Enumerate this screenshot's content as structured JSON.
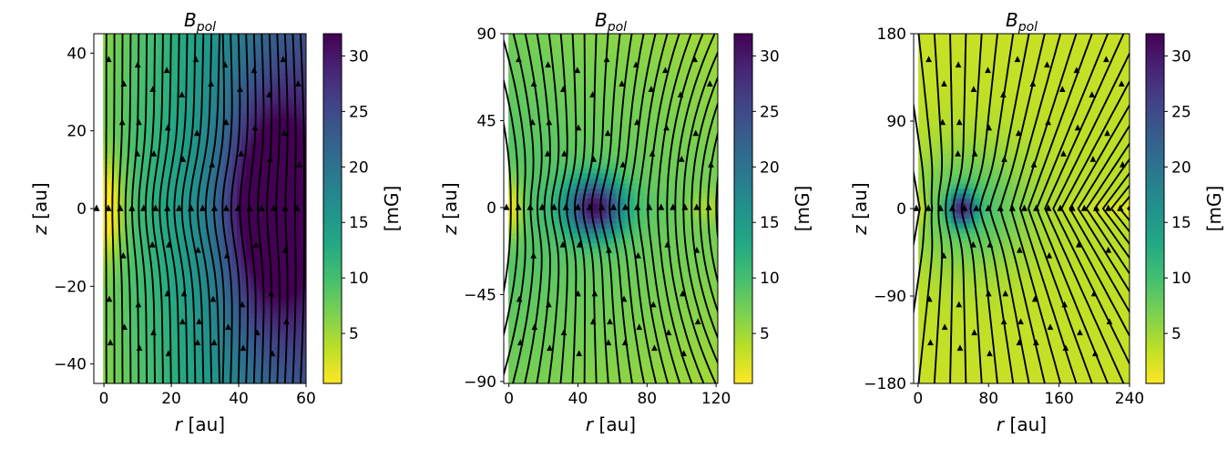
{
  "panels": [
    {
      "title_base": "B",
      "title_sub": "pol",
      "xlabel_var": "r",
      "xlabel_unit": " [au]",
      "ylabel_var": "z",
      "ylabel_unit": " [au]",
      "xlim": [
        -3,
        60
      ],
      "ylim": [
        -45,
        45
      ],
      "xticks": [
        0,
        20,
        40,
        60
      ],
      "yticks": [
        -40,
        -20,
        0,
        20,
        40
      ],
      "colorbar_label": "[mG]",
      "colorbar_ticks": [
        5,
        10,
        15,
        20,
        25,
        30
      ],
      "colorbar_range": [
        0.5,
        32
      ],
      "field_peak_r": 50,
      "field_style": "compact"
    },
    {
      "title_base": "B",
      "title_sub": "pol",
      "xlabel_var": "r",
      "xlabel_unit": " [au]",
      "ylabel_var": "z",
      "ylabel_unit": " [au]",
      "xlim": [
        -3,
        121
      ],
      "ylim": [
        -91,
        90
      ],
      "xticks": [
        0,
        40,
        80,
        120
      ],
      "yticks": [
        -90,
        -45,
        0,
        45,
        90
      ],
      "colorbar_label": "[mG]",
      "colorbar_ticks": [
        5,
        10,
        15,
        20,
        25,
        30
      ],
      "colorbar_range": [
        0.5,
        32
      ],
      "field_peak_r": 50,
      "field_style": "medium"
    },
    {
      "title_base": "B",
      "title_sub": "pol",
      "xlabel_var": "r",
      "xlabel_unit": " [au]",
      "ylabel_var": "z",
      "ylabel_unit": " [au]",
      "xlim": [
        -5,
        240
      ],
      "ylim": [
        -180,
        180
      ],
      "xticks": [
        0,
        80,
        160,
        240
      ],
      "yticks": [
        -180,
        -90,
        0,
        90,
        180
      ],
      "colorbar_label": "[mG]",
      "colorbar_ticks": [
        5,
        10,
        15,
        20,
        25,
        30
      ],
      "colorbar_range": [
        0.5,
        32
      ],
      "field_peak_r": 50,
      "field_style": "wide"
    }
  ],
  "chart_data": [
    {
      "type": "heatmap",
      "title": "B_pol",
      "xlabel": "r [au]",
      "ylabel": "z [au]",
      "xlim": [
        -3,
        60
      ],
      "ylim": [
        -45,
        45
      ],
      "colorbar": {
        "label": "[mG]",
        "range": [
          0.5,
          32
        ],
        "colormap": "viridis_r"
      },
      "overlay": "streamlines of poloidal field with arrowheads",
      "description_values": {
        "peak_field_mG": 32,
        "peak_location_r_au": 50,
        "peak_location_z_au": 0
      }
    },
    {
      "type": "heatmap",
      "title": "B_pol",
      "xlabel": "r [au]",
      "ylabel": "z [au]",
      "xlim": [
        -3,
        121
      ],
      "ylim": [
        -91,
        90
      ],
      "colorbar": {
        "label": "[mG]",
        "range": [
          0.5,
          32
        ],
        "colormap": "viridis_r"
      },
      "overlay": "streamlines of poloidal field with arrowheads",
      "description_values": {
        "peak_field_mG": 32,
        "peak_location_r_au": 50,
        "peak_location_z_au": 0
      }
    },
    {
      "type": "heatmap",
      "title": "B_pol",
      "xlabel": "r [au]",
      "ylabel": "z [au]",
      "xlim": [
        -5,
        240
      ],
      "ylim": [
        -180,
        180
      ],
      "colorbar": {
        "label": "[mG]",
        "range": [
          0.5,
          32
        ],
        "colormap": "viridis_r"
      },
      "overlay": "streamlines of poloidal field with arrowheads",
      "description_values": {
        "peak_field_mG": 32,
        "peak_location_r_au": 50,
        "peak_location_z_au": 0
      }
    }
  ]
}
